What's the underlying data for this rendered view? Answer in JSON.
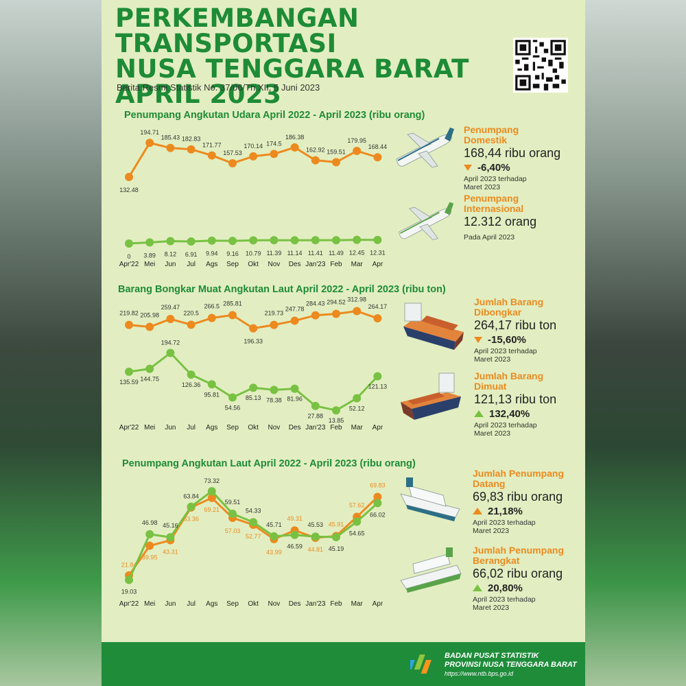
{
  "poster": {
    "title_lines": [
      "PERKEMBANGAN TRANSPORTASI",
      "NUSA TENGGARA BARAT",
      "APRIL 2023"
    ],
    "subtitle": "Berita Resmi Statistik No. 37/06/Th.XII, 5 Juni 2023"
  },
  "colors": {
    "orange": "#ec8a1f",
    "green": "#79c143",
    "title_green": "#1e8b36",
    "background": "#e2eec1",
    "footer": "#1f8c3a"
  },
  "icons": [
    "qr-code-icon",
    "airplane-icon",
    "cargo-ship-icon",
    "ferry-icon",
    "bps-logo-icon",
    "triangle-down-icon",
    "triangle-up-icon"
  ],
  "chart_data": [
    {
      "type": "line",
      "title": "Penumpang Angkutan Udara April 2022 - April 2023 (ribu orang)",
      "categories": [
        "Apr'22",
        "Mei",
        "Jun",
        "Jul",
        "Ags",
        "Sep",
        "Okt",
        "Nov",
        "Des",
        "Jan'23",
        "Feb",
        "Mar",
        "Apr"
      ],
      "series": [
        {
          "name": "Penumpang Domestik",
          "color": "#ec8a1f",
          "values": [
            132.48,
            194.71,
            185.43,
            182.83,
            171.77,
            157.53,
            170.14,
            174.5,
            186.38,
            162.92,
            159.51,
            179.95,
            168.44
          ],
          "labels": [
            "132.48",
            "194.71",
            "185.43",
            "182.83",
            "171.77",
            "157.53",
            "170.14",
            "174.5",
            "186.38",
            "162.92",
            "159.51",
            "179.95",
            "168.44"
          ]
        },
        {
          "name": "Penumpang Internasional",
          "color": "#79c143",
          "values": [
            0,
            3.89,
            8.12,
            6.91,
            9.94,
            9.16,
            10.79,
            11.39,
            11.14,
            11.41,
            11.49,
            12.45,
            12.31
          ],
          "labels": [
            "0",
            "3.89",
            "8.12",
            "6.91",
            "9.94",
            "9.16",
            "10.79",
            "11.39",
            "11.14",
            "11.41",
            "11.49",
            "12.45",
            "12.31"
          ]
        }
      ]
    },
    {
      "type": "line",
      "title": "Barang Bongkar Muat Angkutan Laut April 2022 - April 2023 (ribu ton)",
      "categories": [
        "Apr'22",
        "Mei",
        "Jun",
        "Jul",
        "Ags",
        "Sep",
        "Okt",
        "Nov",
        "Des",
        "Jan'23",
        "Feb",
        "Mar",
        "Apr"
      ],
      "series": [
        {
          "name": "Jumlah Barang Dibongkar",
          "color": "#ec8a1f",
          "values": [
            219.82,
            205.98,
            259.47,
            220.5,
            266.5,
            285.81,
            196.33,
            219.73,
            247.78,
            284.43,
            294.52,
            312.98,
            264.17
          ],
          "labels": [
            "219.82",
            "205.98",
            "259.47",
            "220.5",
            "266.5",
            "285.81",
            "196.33",
            "219.73",
            "247.78",
            "284.43",
            "294.52",
            "312.98",
            "264.17"
          ]
        },
        {
          "name": "Jumlah Barang Dimuat",
          "color": "#79c143",
          "values": [
            135.59,
            144.75,
            194.72,
            126.36,
            95.81,
            54.56,
            85.13,
            78.38,
            81.96,
            27.88,
            13.85,
            52.12,
            121.13
          ],
          "labels": [
            "135.59",
            "144.75",
            "194.72",
            "126.36",
            "95.81",
            "54.56",
            "85.13",
            "78.38",
            "81.96",
            "27.88",
            "13.85",
            "52.12",
            "121.13"
          ]
        }
      ]
    },
    {
      "type": "line",
      "title": "Penumpang Angkutan Laut April 2022 - April 2023 (ribu orang)",
      "categories": [
        "Apr'22",
        "Mei",
        "Jun",
        "Jul",
        "Ags",
        "Sep",
        "Okt",
        "Nov",
        "Des",
        "Jan'23",
        "Feb",
        "Mar",
        "Apr"
      ],
      "series": [
        {
          "name": "Jumlah Penumpang Datang",
          "color": "#ec8a1f",
          "values": [
            21.84,
            39.95,
            43.31,
            63.36,
            69.21,
            57.03,
            52.77,
            43.99,
            49.31,
            44.81,
            45.91,
            57.62,
            69.83
          ],
          "labels": [
            "21.84",
            "39.95",
            "43.31",
            "63.36",
            "69.21",
            "57.03",
            "52.77",
            "43.99",
            "49.31",
            "44.81",
            "45.91",
            "57.62",
            "69.83"
          ]
        },
        {
          "name": "Jumlah Penumpang Berangkat",
          "color": "#79c143",
          "values": [
            19.03,
            46.98,
            45.16,
            63.84,
            73.32,
            59.51,
            54.33,
            45.71,
            46.59,
            45.53,
            45.19,
            54.65,
            66.02
          ],
          "labels": [
            "19.03",
            "46.98",
            "45.16",
            "63.84",
            "73.32",
            "59.51",
            "54.33",
            "45.71",
            "46.59",
            "45.53",
            "45.19",
            "54.65",
            "66.02"
          ]
        }
      ]
    }
  ],
  "info": {
    "domestik": {
      "label": "Penumpang Domestik",
      "value": "168,44 ribu orang",
      "change": "-6,40%",
      "direction": "down",
      "note": "April 2023 terhadap Maret  2023"
    },
    "internasional": {
      "label": "Penumpang Internasional",
      "value": "12.312 orang",
      "note": "Pada April 2023"
    },
    "dibongkar": {
      "label": "Jumlah Barang Dibongkar",
      "value": "264,17 ribu ton",
      "change": "-15,60%",
      "direction": "down",
      "note": "April 2023 terhadap Maret  2023"
    },
    "dimuat": {
      "label": "Jumlah Barang Dimuat",
      "value": "121,13 ribu ton",
      "change": "132,40%",
      "direction": "up",
      "note": "April 2023 terhadap Maret  2023"
    },
    "datang": {
      "label": "Jumlah Penumpang Datang",
      "value": "69,83 ribu orang",
      "change": "21,18%",
      "direction": "up",
      "note": "April 2023 terhadap Maret  2023"
    },
    "berangkat": {
      "label": "Jumlah Penumpang Berangkat",
      "value": "66,02 ribu orang",
      "change": "20,80%",
      "direction": "up",
      "note": "April 2023 terhadap Maret  2023"
    }
  },
  "footer": {
    "org_line1": "BADAN PUSAT STATISTIK",
    "org_line2": "PROVINSI NUSA TENGGARA BARAT",
    "url": "https://www.ntb.bps.go.id"
  }
}
